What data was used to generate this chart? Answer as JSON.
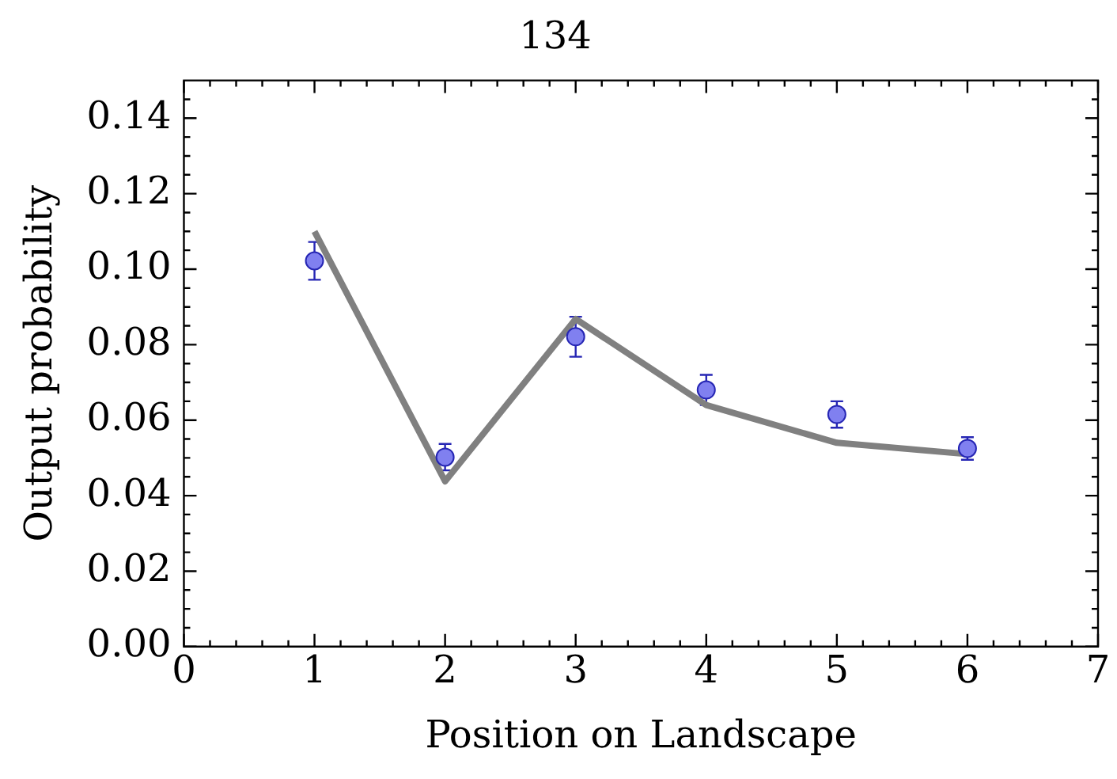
{
  "chart_data": {
    "type": "scatter",
    "title": "134",
    "xlabel": "Position on Landscape",
    "ylabel": "Output probability",
    "xlim": [
      0,
      7
    ],
    "xticks": [
      0,
      1,
      2,
      3,
      4,
      5,
      6,
      7
    ],
    "ylim": [
      0,
      0.15
    ],
    "yticks": [
      {
        "value": 0,
        "label": "0.00"
      },
      {
        "value": 0.02,
        "label": "0.02"
      },
      {
        "value": 0.04,
        "label": "0.04"
      },
      {
        "value": 0.06,
        "label": "0.06"
      },
      {
        "value": 0.08,
        "label": "0.08"
      },
      {
        "value": 0.1,
        "label": "0.10"
      },
      {
        "value": 0.12,
        "label": "0.12"
      },
      {
        "value": 0.14,
        "label": "0.14"
      }
    ],
    "grid": false,
    "legend": false,
    "series": [
      {
        "type": "line",
        "color": "#808080",
        "x": [
          1,
          2,
          3,
          4,
          5,
          6
        ],
        "values": [
          0.11,
          0.0438,
          0.0868,
          0.064,
          0.054,
          0.051
        ],
        "marker": "none",
        "line_style": "solid"
      },
      {
        "type": "scatter",
        "color": "#8080f0",
        "x": [
          1,
          2,
          3,
          4,
          5,
          6
        ],
        "values": [
          0.1022,
          0.0502,
          0.0821,
          0.068,
          0.0615,
          0.0525
        ],
        "errors": [
          0.005,
          0.0035,
          0.0053,
          0.004,
          0.0035,
          0.003
        ],
        "marker": "circle"
      }
    ]
  }
}
